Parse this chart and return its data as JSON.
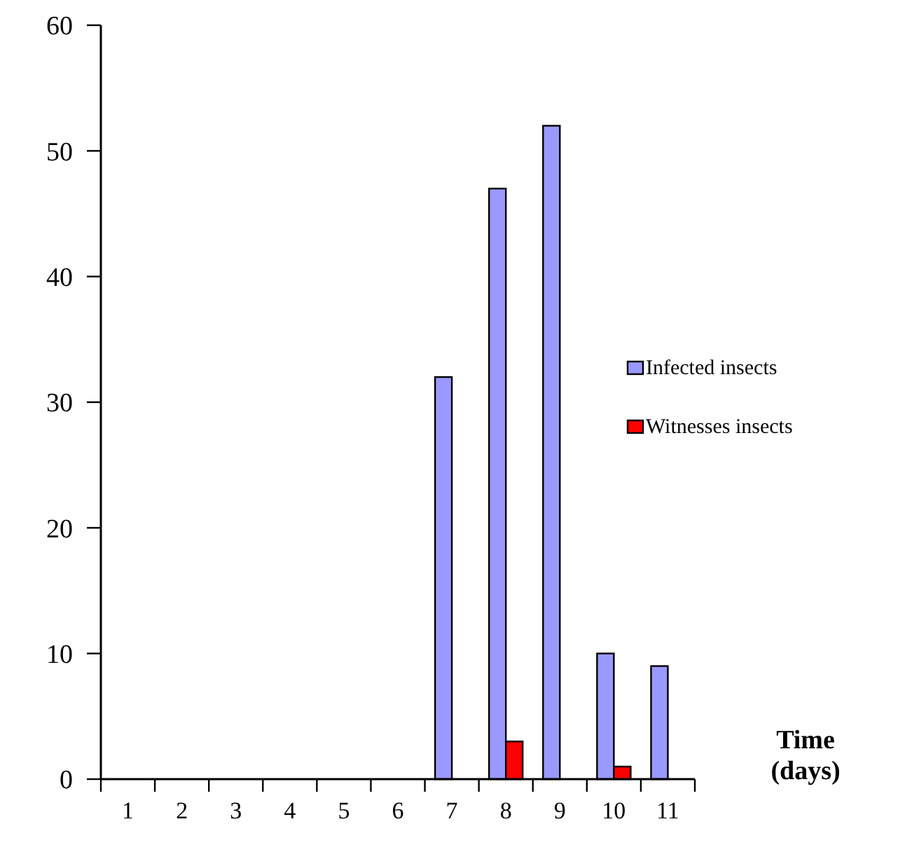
{
  "chart_data": {
    "type": "bar",
    "xlabel": "Time\n(days)",
    "categories": [
      "1",
      "2",
      "3",
      "4",
      "5",
      "6",
      "7",
      "8",
      "9",
      "10",
      "11"
    ],
    "series": [
      {
        "name": "Infected insects",
        "color": "#9999ff",
        "values": [
          0,
          0,
          0,
          0,
          0,
          0,
          32,
          47,
          52,
          10,
          9
        ]
      },
      {
        "name": "Witnesses insects",
        "color": "#ff0000",
        "values": [
          0,
          0,
          0,
          0,
          0,
          0,
          0,
          3,
          0,
          1,
          0
        ]
      }
    ],
    "ylim": [
      0,
      60
    ],
    "yticks": [
      0,
      10,
      20,
      30,
      40,
      50,
      60
    ],
    "legend": "right",
    "grid": false
  }
}
